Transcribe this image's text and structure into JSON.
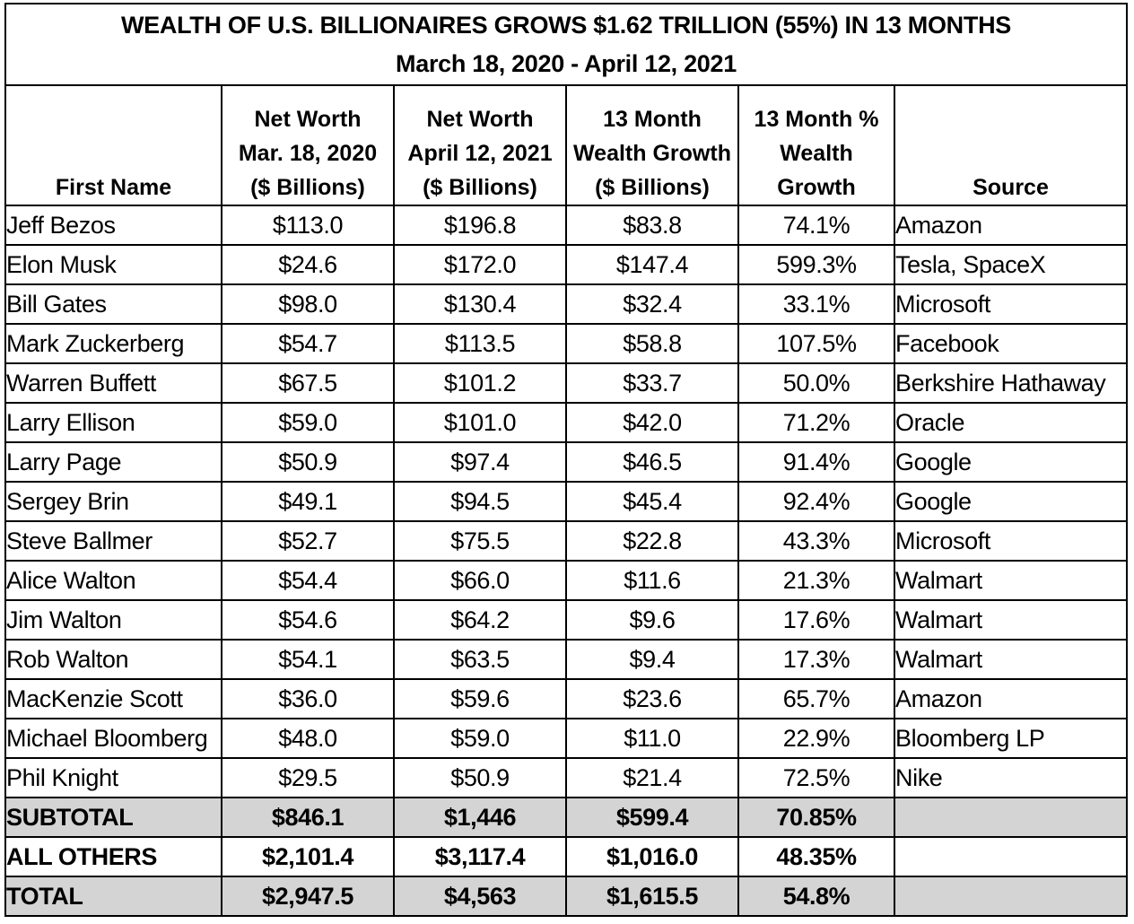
{
  "title": {
    "line1": "WEALTH OF U.S. BILLIONAIRES GROWS $1.62 TRILLION (55%) IN 13 MONTHS",
    "line2": "March 18, 2020 - April 12, 2021"
  },
  "headers": [
    [
      "First Name"
    ],
    [
      "Net Worth",
      "Mar. 18, 2020",
      "($ Billions)"
    ],
    [
      "Net Worth",
      "April 12, 2021",
      "($ Billions)"
    ],
    [
      "13 Month",
      "Wealth Growth",
      "($ Billions)"
    ],
    [
      "13 Month %",
      "Wealth",
      "Growth"
    ],
    [
      "Source"
    ]
  ],
  "rows": [
    [
      "Jeff Bezos",
      "$113.0",
      "$196.8",
      "$83.8",
      "74.1%",
      "Amazon"
    ],
    [
      "Elon Musk",
      "$24.6",
      "$172.0",
      "$147.4",
      "599.3%",
      "Tesla, SpaceX"
    ],
    [
      "Bill Gates",
      "$98.0",
      "$130.4",
      "$32.4",
      "33.1%",
      "Microsoft"
    ],
    [
      "Mark Zuckerberg",
      "$54.7",
      "$113.5",
      "$58.8",
      "107.5%",
      "Facebook"
    ],
    [
      "Warren Buffett",
      "$67.5",
      "$101.2",
      "$33.7",
      "50.0%",
      "Berkshire Hathaway"
    ],
    [
      "Larry Ellison",
      "$59.0",
      "$101.0",
      "$42.0",
      "71.2%",
      "Oracle"
    ],
    [
      "Larry Page",
      "$50.9",
      "$97.4",
      "$46.5",
      "91.4%",
      "Google"
    ],
    [
      "Sergey Brin",
      "$49.1",
      "$94.5",
      "$45.4",
      "92.4%",
      "Google"
    ],
    [
      "Steve Ballmer",
      "$52.7",
      "$75.5",
      "$22.8",
      "43.3%",
      "Microsoft"
    ],
    [
      "Alice Walton",
      "$54.4",
      "$66.0",
      "$11.6",
      "21.3%",
      "Walmart"
    ],
    [
      "Jim Walton",
      "$54.6",
      "$64.2",
      "$9.6",
      "17.6%",
      "Walmart"
    ],
    [
      "Rob Walton",
      "$54.1",
      "$63.5",
      "$9.4",
      "17.3%",
      "Walmart"
    ],
    [
      "MacKenzie Scott",
      "$36.0",
      "$59.6",
      "$23.6",
      "65.7%",
      "Amazon"
    ],
    [
      "Michael Bloomberg",
      "$48.0",
      "$59.0",
      "$11.0",
      "22.9%",
      "Bloomberg LP"
    ],
    [
      "Phil Knight",
      "$29.5",
      "$50.9",
      "$21.4",
      "72.5%",
      "Nike"
    ]
  ],
  "summary_rows": [
    {
      "cells": [
        "SUBTOTAL",
        "$846.1",
        "$1,446",
        "$599.4",
        "70.85%",
        ""
      ],
      "shaded": true
    },
    {
      "cells": [
        "ALL OTHERS",
        "$2,101.4",
        "$3,117.4",
        "$1,016.0",
        "48.35%",
        ""
      ],
      "shaded": false
    },
    {
      "cells": [
        "TOTAL",
        "$2,947.5",
        "$4,563",
        "$1,615.5",
        "54.8%",
        ""
      ],
      "shaded": true
    }
  ],
  "colors": {
    "border": "#000000",
    "shade": "#d4d4d4",
    "background": "#ffffff"
  }
}
